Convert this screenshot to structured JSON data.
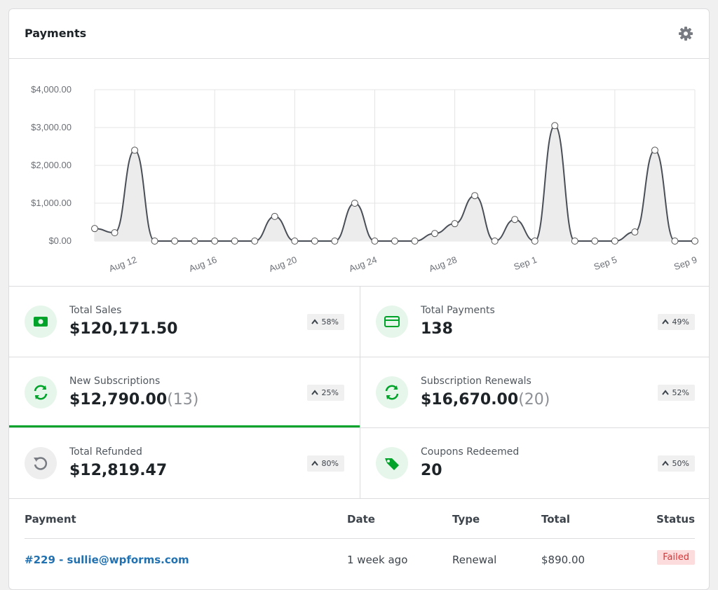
{
  "header": {
    "title": "Payments"
  },
  "chart_data": {
    "type": "area",
    "categories": [
      null,
      null,
      "Aug 12",
      null,
      null,
      null,
      "Aug 16",
      null,
      null,
      null,
      "Aug 20",
      null,
      null,
      null,
      "Aug 24",
      null,
      null,
      null,
      "Aug 28",
      null,
      null,
      null,
      "Sep 1",
      null,
      null,
      null,
      "Sep 5",
      null,
      null,
      null,
      "Sep 9"
    ],
    "series": [
      {
        "color": "#4a4f57",
        "values": [
          330,
          220,
          2400,
          0,
          0,
          0,
          0,
          0,
          0,
          650,
          0,
          0,
          0,
          1000,
          0,
          0,
          0,
          200,
          460,
          1200,
          0,
          570,
          0,
          3050,
          0,
          0,
          0,
          240,
          2400,
          0,
          0
        ]
      }
    ],
    "ylim": [
      0,
      4000
    ],
    "yticks": [
      {
        "value": 0,
        "label": "$0.00"
      },
      {
        "value": 1000,
        "label": "$1,000.00"
      },
      {
        "value": 2000,
        "label": "$2,000.00"
      },
      {
        "value": 3000,
        "label": "$3,000.00"
      },
      {
        "value": 4000,
        "label": "$4,000.00"
      }
    ],
    "grid": true
  },
  "stats": [
    {
      "label": "Total Sales",
      "value": "$120,171.50",
      "change": "58%"
    },
    {
      "label": "Total Payments",
      "value": "138",
      "change": "49%"
    },
    {
      "label": "New Subscriptions",
      "value": "$12,790.00",
      "count": "(13)",
      "change": "25%"
    },
    {
      "label": "Subscription Renewals",
      "value": "$16,670.00",
      "count": "(20)",
      "change": "52%"
    },
    {
      "label": "Total Refunded",
      "value": "$12,819.47",
      "change": "80%"
    },
    {
      "label": "Coupons Redeemed",
      "value": "20",
      "change": "50%"
    }
  ],
  "table": {
    "headers": [
      "Payment",
      "Date",
      "Type",
      "Total",
      "Status"
    ],
    "rows": [
      [
        "#229 - sullie@wpforms.com",
        "1 week ago",
        "Renewal",
        "$890.00",
        "Failed"
      ]
    ]
  }
}
